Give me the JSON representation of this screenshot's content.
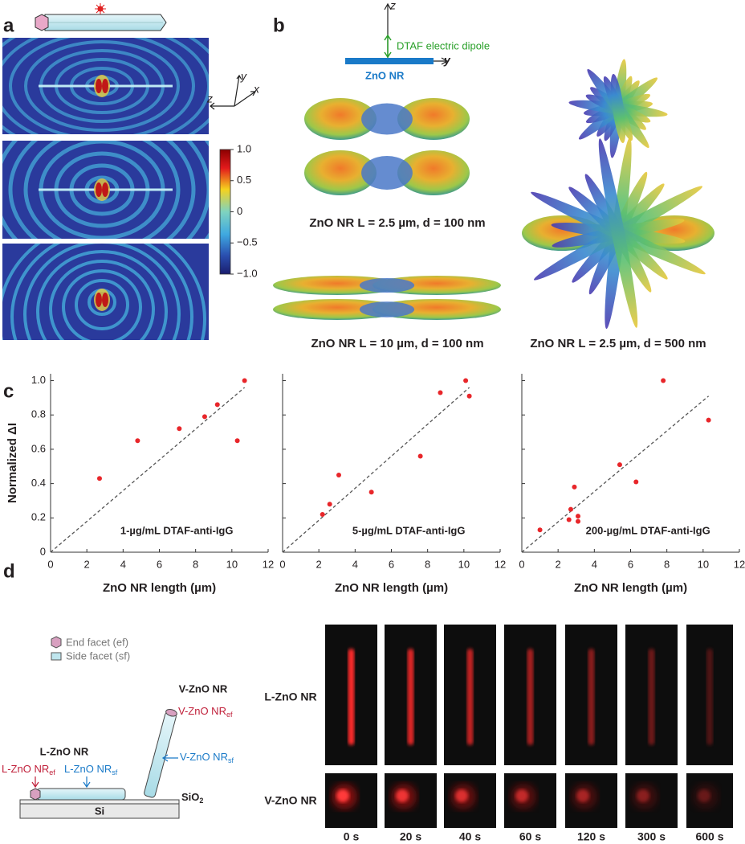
{
  "panel_labels": [
    "a",
    "b",
    "c",
    "d"
  ],
  "panel_a": {
    "axes": {
      "z": "z",
      "y": "y",
      "x": "x"
    },
    "colorbar": {
      "lim": [
        -1,
        1
      ],
      "ticks": [
        {
          "value": 1,
          "label": "1.0"
        },
        0.5,
        0,
        {
          "value": -0.5,
          "label": "−0.5"
        },
        {
          "value": -1,
          "label": "−1.0"
        }
      ]
    }
  },
  "panel_b": {
    "z": "z",
    "y": "y",
    "dipole": "DTAF electric dipole",
    "nr": "ZnO NR",
    "captions": [
      "ZnO NR L = 2.5 µm, d = 100 nm",
      "ZnO NR L = 10 µm, d = 100 nm",
      "ZnO NR L = 2.5 µm, d = 500 nm"
    ]
  },
  "chart_data": [
    {
      "type": "scatter",
      "ylabel": "Normalized ΔI",
      "xlabel": "ZnO NR length (µm)",
      "annotation": "1-µg/mL DTAF-anti-IgG",
      "x": [
        2.7,
        4.8,
        7.1,
        8.5,
        9.2,
        10.3,
        10.7
      ],
      "values": [
        0.43,
        0.65,
        0.72,
        0.79,
        0.86,
        0.65,
        1.0
      ],
      "color": "#e8262a",
      "fit": {
        "x": [
          0,
          10.7
        ],
        "values": [
          0,
          0.96
        ],
        "color": "#555"
      },
      "xlim": [
        0,
        12
      ],
      "ylim": [
        0,
        1.04
      ],
      "xticks": [
        0,
        2,
        4,
        6,
        8,
        10,
        12
      ],
      "yticks": [
        0,
        0.2,
        0.4,
        0.6,
        0.8,
        {
          "value": 1,
          "label": "1.0"
        }
      ],
      "ytick_labels": true
    },
    {
      "type": "scatter",
      "xlabel": "ZnO NR length (µm)",
      "annotation": "5-µg/mL DTAF-anti-IgG",
      "x": [
        2.2,
        2.6,
        3.1,
        4.9,
        7.6,
        8.7,
        10.1,
        10.3
      ],
      "values": [
        0.22,
        0.28,
        0.45,
        0.35,
        0.56,
        0.93,
        1.0,
        0.91
      ],
      "color": "#e8262a",
      "fit": {
        "x": [
          0,
          10.3
        ],
        "values": [
          0,
          0.96
        ],
        "color": "#555"
      },
      "xlim": [
        0,
        12
      ],
      "ylim": [
        0,
        1.04
      ],
      "xticks": [
        0,
        2,
        4,
        6,
        8,
        10,
        12
      ],
      "yticks": [
        0,
        0.2,
        0.4,
        0.6,
        0.8,
        1
      ],
      "ytick_labels": false
    },
    {
      "type": "scatter",
      "xlabel": "ZnO NR length (µm)",
      "annotation": "200-µg/mL DTAF-anti-IgG",
      "x": [
        1.0,
        2.6,
        2.7,
        2.9,
        3.1,
        3.1,
        5.4,
        6.3,
        7.8,
        10.3
      ],
      "values": [
        0.13,
        0.19,
        0.25,
        0.38,
        0.21,
        0.18,
        0.51,
        0.41,
        1.0,
        0.77
      ],
      "color": "#e8262a",
      "fit": {
        "x": [
          0,
          10.3
        ],
        "values": [
          0,
          0.91
        ],
        "color": "#555"
      },
      "xlim": [
        0,
        12
      ],
      "ylim": [
        0,
        1.04
      ],
      "xticks": [
        0,
        2,
        4,
        6,
        8,
        10,
        12
      ],
      "yticks": [
        0,
        0.2,
        0.4,
        0.6,
        0.8,
        1
      ],
      "ytick_labels": false
    }
  ],
  "panel_d": {
    "legend": [
      "End facet (ef)",
      "Side facet (sf)"
    ],
    "v_title": "V-ZnO NR",
    "l_title": "L-ZnO NR",
    "v_ef": {
      "main": "V-ZnO NR",
      "sub": "ef"
    },
    "v_sf": {
      "main": "V-ZnO NR",
      "sub": "sf"
    },
    "l_ef": {
      "main": "L-ZnO NR",
      "sub": "ef"
    },
    "l_sf": {
      "main": "L-ZnO NR",
      "sub": "sf"
    },
    "sio2": {
      "main": "SiO",
      "sub": "2"
    },
    "si": "Si",
    "rows": [
      "L-ZnO NR",
      "V-ZnO NR"
    ],
    "times": [
      "0 s",
      "20 s",
      "40 s",
      "60 s",
      "120 s",
      "300 s",
      "600 s"
    ]
  }
}
